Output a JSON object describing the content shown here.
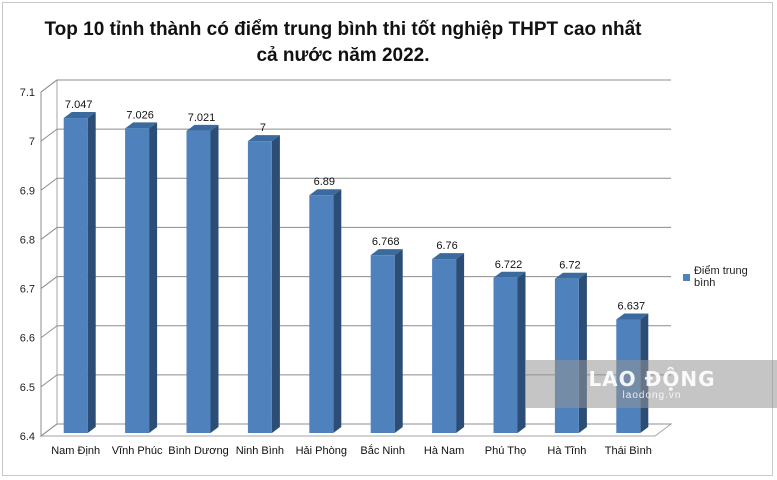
{
  "chart_data": {
    "type": "bar",
    "title": "Top 10 tỉnh thành có điểm trung bình thi tốt nghiệp THPT cao nhất cả nước năm 2022.",
    "categories": [
      "Nam Định",
      "Vĩnh Phúc",
      "Bình Dương",
      "Ninh Bình",
      "Hải Phòng",
      "Bắc Ninh",
      "Hà Nam",
      "Phú Thọ",
      "Hà Tĩnh",
      "Thái Bình"
    ],
    "series": [
      {
        "name": "Điểm trung bình",
        "values": [
          7.047,
          7.026,
          7.021,
          7,
          6.89,
          6.768,
          6.76,
          6.722,
          6.72,
          6.637
        ],
        "labels": [
          "7.047",
          "7.026",
          "7.021",
          "7",
          "6.89",
          "6.768",
          "6.76",
          "6.722",
          "6.72",
          "6.637"
        ]
      }
    ],
    "ylim": [
      6.4,
      7.1
    ],
    "yticks": [
      "6.4",
      "6.5",
      "6.6",
      "6.7",
      "6.8",
      "6.9",
      "7",
      "7.1"
    ],
    "grid": true,
    "legend_position": "right",
    "bar_color": "#4f81bd"
  },
  "watermark": {
    "logo": "LAO ĐỘNG",
    "url": "laodong.vn"
  }
}
